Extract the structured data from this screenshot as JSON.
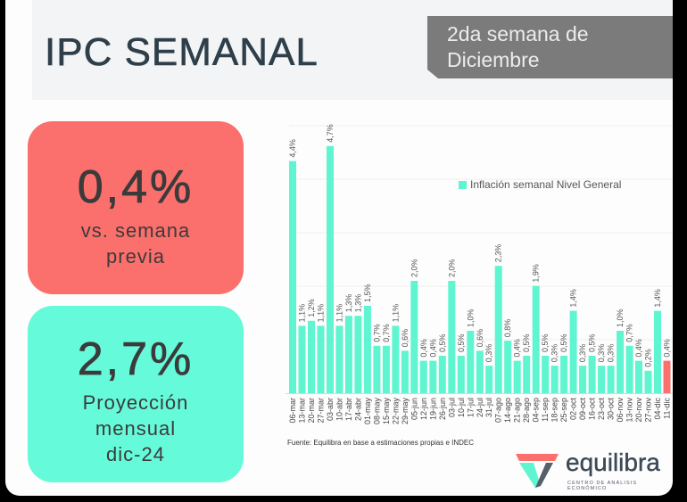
{
  "header": {
    "title": "IPC SEMANAL",
    "week_label_line1": "2da semana de",
    "week_label_line2": "Diciembre"
  },
  "kpis": [
    {
      "value": "0,4%",
      "label_line1": "vs. semana",
      "label_line2": "previa",
      "color": "#fb6f6c"
    },
    {
      "value": "2,7%",
      "label_line1": "Proyección",
      "label_line2": "mensual",
      "label_line3": "dic-24",
      "color": "#65fad9"
    }
  ],
  "chart_data": {
    "type": "bar",
    "title": "",
    "xlabel": "",
    "ylabel": "",
    "grid": true,
    "legend": [
      {
        "name": "Inflación semanal Nivel General",
        "color": "#5ef5d0"
      }
    ],
    "legend_position": "top-right",
    "highlight_color": "#fb6f6c",
    "highlight_index": 40,
    "categories": [
      "06-mar",
      "13-mar",
      "20-mar",
      "27-mar",
      "03-abr",
      "10-abr",
      "17-abr",
      "24-abr",
      "01-may",
      "08-may",
      "15-may",
      "22-may",
      "29-may",
      "05-jun",
      "12-jun",
      "19-jun",
      "26-jun",
      "03-jul",
      "10-jul",
      "17-jul",
      "24-jul",
      "31-jul",
      "07-ago",
      "14-ago",
      "21-ago",
      "28-ago",
      "04-sep",
      "11-sep",
      "18-sep",
      "25-sep",
      "02-oct",
      "09-oct",
      "16-oct",
      "23-oct",
      "30-oct",
      "06-nov",
      "13-nov",
      "20-nov",
      "27-nov",
      "04-dic",
      "11-dic"
    ],
    "values": [
      4.4,
      1.1,
      1.2,
      1.1,
      4.7,
      1.1,
      1.3,
      1.3,
      1.5,
      0.7,
      0.7,
      1.1,
      0.6,
      2.0,
      0.4,
      0.4,
      0.5,
      2.0,
      0.5,
      1.0,
      0.6,
      0.3,
      2.3,
      0.8,
      0.4,
      0.5,
      1.9,
      0.5,
      0.3,
      0.5,
      1.4,
      0.3,
      0.5,
      0.3,
      0.3,
      1.0,
      0.7,
      0.4,
      0.2,
      1.4,
      0.4
    ],
    "data_labels": [
      "4,4%",
      "1,1%",
      "1,2%",
      "1,1%",
      "4,7%",
      "1,1%",
      "1,3%",
      "1,3%",
      "1,5%",
      "0,7%",
      "0,7%",
      "1,1%",
      "0,6%",
      "2,0%",
      "0,4%",
      "0,4%",
      "0,5%",
      "2,0%",
      "0,5%",
      "1,0%",
      "0,6%",
      "0,3%",
      "2,3%",
      "0,8%",
      "0,4%",
      "0,5%",
      "1,9%",
      "0,5%",
      "0,3%",
      "0,5%",
      "1,4%",
      "0,3%",
      "0,5%",
      "0,3%",
      "0,3%",
      "1,0%",
      "0,7%",
      "0,4%",
      "0,2%",
      "1,4%",
      "0,4%"
    ],
    "source": "Fuente: Equilibra en base a estimaciones propias e INDEC"
  },
  "logo": {
    "name": "equilibra",
    "tagline": "CENTRO DE ANÁLISIS ECONÓMICO"
  }
}
